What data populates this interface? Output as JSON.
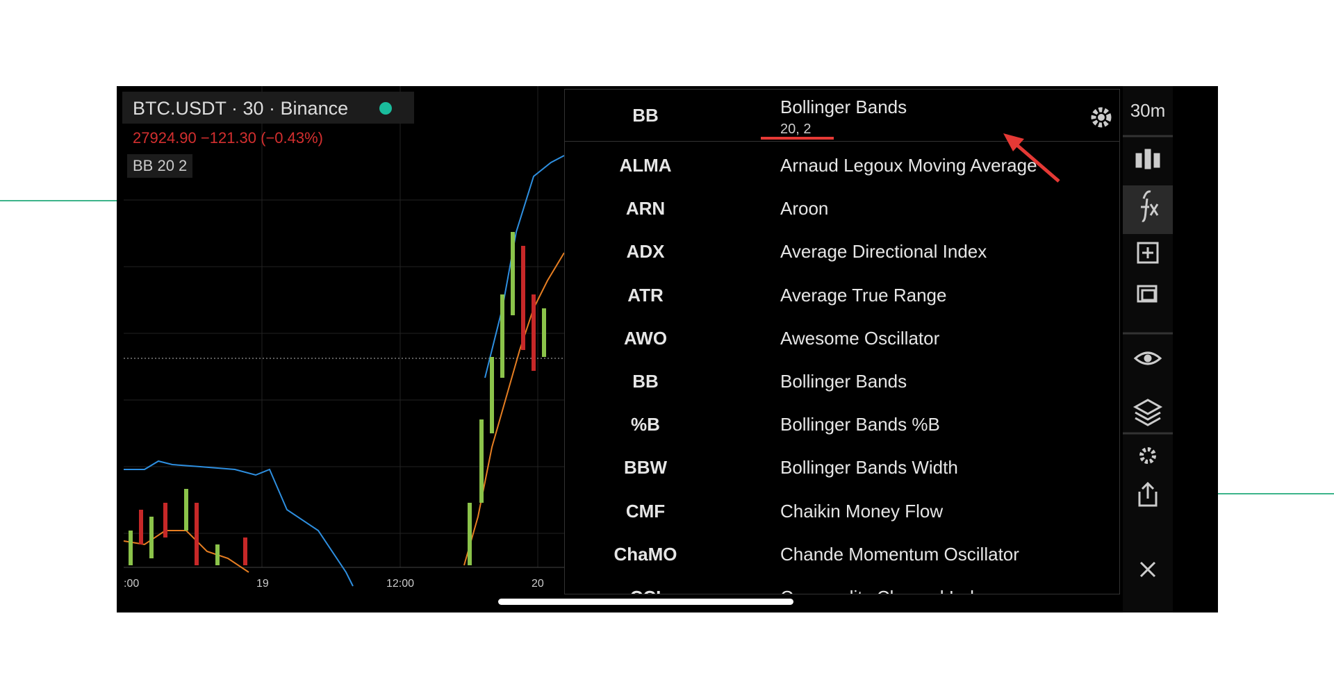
{
  "chart_header": {
    "title": "BTC.USDT · 30 · Binance",
    "price": "27924.90 −121.30 (−0.43%)",
    "indicator": "BB 20 2"
  },
  "x_axis_labels": [
    ":00",
    "19",
    "12:00",
    "20"
  ],
  "toolbar": {
    "interval": "30m"
  },
  "active_indicator": {
    "code": "BB",
    "name": "Bollinger Bands",
    "params": "20, 2"
  },
  "indicators": [
    {
      "code": "ALMA",
      "name": "Arnaud Legoux Moving Average"
    },
    {
      "code": "ARN",
      "name": "Aroon"
    },
    {
      "code": "ADX",
      "name": "Average Directional Index"
    },
    {
      "code": "ATR",
      "name": "Average True Range"
    },
    {
      "code": "AWO",
      "name": "Awesome Oscillator"
    },
    {
      "code": "BB",
      "name": "Bollinger Bands"
    },
    {
      "code": "%B",
      "name": "Bollinger Bands %B"
    },
    {
      "code": "BBW",
      "name": "Bollinger Bands Width"
    },
    {
      "code": "CMF",
      "name": "Chaikin Money Flow"
    },
    {
      "code": "ChaMO",
      "name": "Chande Momentum Oscillator"
    },
    {
      "code": "CCI",
      "name": "Commodity Channel Index"
    }
  ]
}
